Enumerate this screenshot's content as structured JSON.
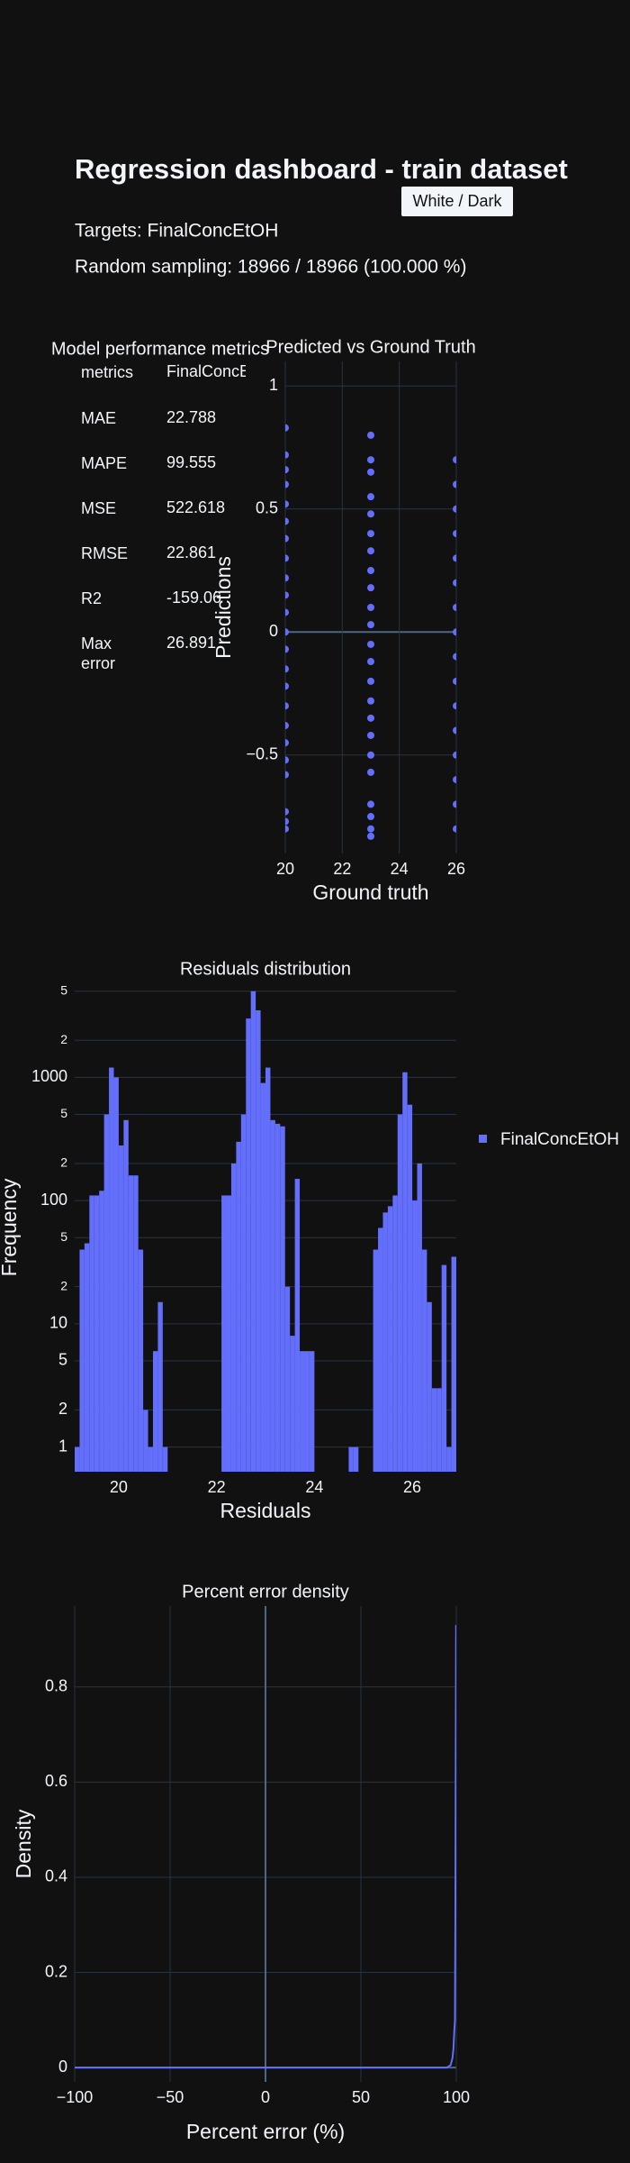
{
  "header": {
    "title": "Regression dashboard - train dataset",
    "button": "White / Dark",
    "targets": "Targets: FinalConcEtOH",
    "sampling": "Random sampling: 18966 / 18966 (100.000 %)"
  },
  "metrics": {
    "title": "Model performance metrics",
    "columns": [
      "metrics",
      "FinalConcE"
    ],
    "rows": [
      [
        "MAE",
        "22.788"
      ],
      [
        "MAPE",
        "99.555"
      ],
      [
        "MSE",
        "522.618"
      ],
      [
        "RMSE",
        "22.861"
      ],
      [
        "R2",
        "-159.06"
      ],
      [
        "Max error",
        "26.891"
      ]
    ]
  },
  "chart_data": [
    {
      "type": "scatter",
      "title": "Predicted vs Ground Truth",
      "x_label": "Ground truth",
      "y_label": "Predictions",
      "color": "#636efa",
      "grid": true,
      "x": [
        20,
        20,
        20,
        20,
        20,
        20,
        20,
        20,
        20,
        20,
        20,
        20,
        20,
        20,
        20,
        20,
        20,
        20,
        20,
        20,
        20,
        20,
        20,
        23,
        23,
        23,
        23,
        23,
        23,
        23,
        23,
        23,
        23,
        23,
        23,
        23,
        23,
        23,
        23,
        23,
        23,
        23,
        23,
        23,
        23,
        23,
        26,
        26,
        26,
        26,
        26,
        26,
        26,
        26,
        26,
        26,
        26,
        26,
        26,
        26,
        26,
        26
      ],
      "values": [
        0.83,
        0.72,
        0.66,
        0.6,
        0.52,
        0.45,
        0.38,
        0.3,
        0.22,
        0.15,
        0.08,
        0,
        -0.07,
        -0.15,
        -0.22,
        -0.3,
        -0.38,
        -0.45,
        -0.52,
        -0.58,
        -0.73,
        -0.77,
        -0.8,
        0.8,
        0.7,
        0.65,
        0.55,
        0.48,
        0.4,
        0.33,
        0.25,
        0.18,
        0.1,
        0.03,
        -0.05,
        -0.12,
        -0.2,
        -0.28,
        -0.35,
        -0.42,
        -0.5,
        -0.57,
        -0.7,
        -0.75,
        -0.8,
        -0.83,
        0.7,
        0.6,
        0.5,
        0.4,
        0.3,
        0.2,
        0.1,
        0,
        -0.1,
        -0.2,
        -0.3,
        -0.4,
        -0.5,
        -0.6,
        -0.7,
        -0.8
      ],
      "xlim": [
        20,
        26
      ],
      "xticks": [
        20,
        22,
        24,
        26
      ],
      "ylim": [
        -0.9,
        1.1
      ],
      "yticks": [
        {
          "value": -0.5,
          "label": "−0.5"
        },
        0,
        0.5,
        1
      ]
    },
    {
      "type": "histogram",
      "title": "Residuals distribution",
      "x_label": "Residuals",
      "y_label": "Frequency",
      "log_y": true,
      "grid": true,
      "bins": [
        19.1,
        19.2,
        19.3,
        19.4,
        19.5,
        19.6,
        19.7,
        19.8,
        19.9,
        20,
        20.1,
        20.2,
        20.3,
        20.4,
        20.5,
        20.6,
        20.7,
        20.8,
        20.9,
        21,
        21.1,
        21.2,
        21.3,
        21.4,
        21.5,
        21.6,
        21.7,
        21.8,
        21.9,
        22,
        22.1,
        22.2,
        22.3,
        22.4,
        22.5,
        22.6,
        22.7,
        22.8,
        22.9,
        23,
        23.1,
        23.2,
        23.3,
        23.4,
        23.5,
        23.6,
        23.7,
        23.8,
        23.9,
        24,
        24.1,
        24.2,
        24.3,
        24.4,
        24.5,
        24.6,
        24.7,
        24.8,
        24.9,
        25,
        25.1,
        25.2,
        25.3,
        25.4,
        25.5,
        25.6,
        25.7,
        25.8,
        25.9,
        26,
        26.1,
        26.2,
        26.3,
        26.4,
        26.5,
        26.6,
        26.7,
        26.8,
        26.9
      ],
      "series": [
        {
          "name": "FinalConcEtOH",
          "color": "#636efa",
          "values": [
            1,
            40,
            45,
            110,
            110,
            120,
            500,
            1200,
            1000,
            280,
            450,
            160,
            160,
            40,
            2,
            1,
            6,
            15,
            1,
            0,
            0,
            0,
            0,
            0,
            0,
            0,
            0,
            0,
            0,
            0,
            110,
            110,
            200,
            300,
            500,
            3000,
            5000,
            3500,
            900,
            1200,
            450,
            420,
            400,
            20,
            8,
            150,
            6,
            6,
            6,
            0,
            0,
            0,
            0,
            0,
            0,
            0,
            1,
            1,
            0,
            0,
            0,
            40,
            60,
            80,
            90,
            110,
            500,
            1100,
            600,
            100,
            200,
            40,
            15,
            3,
            3,
            30,
            1,
            35
          ]
        }
      ],
      "xlim": [
        19.1,
        26.9
      ],
      "xticks": [
        20,
        22,
        24,
        26
      ],
      "ylim": [
        0.63,
        5800
      ],
      "yticks": [
        1,
        2,
        5,
        10,
        {
          "value": 20,
          "label": "2"
        },
        {
          "value": 50,
          "label": "5"
        },
        100,
        {
          "value": 200,
          "label": "2"
        },
        {
          "value": 500,
          "label": "5"
        },
        1000,
        {
          "value": 2000,
          "label": "2"
        },
        {
          "value": 5000,
          "label": "5"
        }
      ]
    },
    {
      "type": "line",
      "title": "Percent error density",
      "x_label": "Percent error (%)",
      "y_label": "Density",
      "color": "#636efa",
      "grid": true,
      "x": [
        -100,
        90,
        95,
        97,
        98,
        98.5,
        99,
        99.3,
        99.5,
        99.7,
        99.9,
        100
      ],
      "values": [
        0,
        0,
        0,
        0.005,
        0.02,
        0.04,
        0.08,
        0.1,
        0.3,
        0.65,
        0.93,
        0.6
      ],
      "xlim": [
        -100,
        100
      ],
      "xticks": [
        {
          "value": -100,
          "label": "−100"
        },
        {
          "value": -50,
          "label": "−50"
        },
        0,
        50,
        100
      ],
      "ylim": [
        -0.03,
        0.97
      ],
      "yticks": [
        0,
        0.2,
        0.4,
        0.6,
        0.8
      ]
    }
  ]
}
